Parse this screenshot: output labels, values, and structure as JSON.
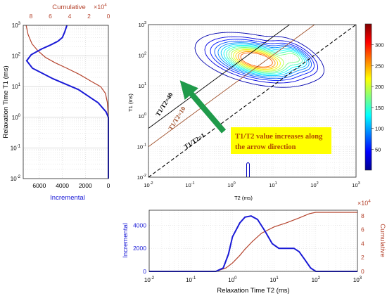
{
  "colors": {
    "incremental": "#1a1ad6",
    "cumulative": "#b5442e",
    "arrow": "#1f9a4a",
    "annotation_bg": "#ffff00",
    "annotation_text": "#b04a00",
    "ratio40": "#000000",
    "ratio10": "#a0522d",
    "ratio1": "#000000"
  },
  "chart_data": [
    {
      "id": "left",
      "type": "line",
      "ylabel": "Relaxation Time T1 (ms)",
      "xlabel": "Incremental",
      "xlabel_top": "Cumulative",
      "top_exponent": "×10",
      "top_exponent_power": "4",
      "y_scale": "log",
      "ylim": [
        0.01,
        1000
      ],
      "y_ticks": [
        "10",
        "10",
        "10",
        "10",
        "10",
        "10"
      ],
      "y_tick_powers": [
        "-2",
        "-1",
        "0",
        "1",
        "2",
        "3"
      ],
      "xlim_bottom": [
        7400,
        0
      ],
      "x_ticks_bottom": [
        "6000",
        "4000",
        "2000",
        "0"
      ],
      "x_tick_values_bottom": [
        6000,
        4000,
        2000,
        0
      ],
      "xlim_top": [
        8.8,
        0
      ],
      "x_ticks_top": [
        "8",
        "6",
        "4",
        "2",
        "0"
      ],
      "x_tick_values_top": [
        8,
        6,
        4,
        2,
        0
      ],
      "grid": true,
      "series": [
        {
          "name": "Incremental",
          "points": [
            [
              0,
              0.01
            ],
            [
              0,
              1
            ],
            [
              200,
              1.5
            ],
            [
              900,
              3
            ],
            [
              2600,
              8
            ],
            [
              4800,
              18
            ],
            [
              6600,
              40
            ],
            [
              7100,
              70
            ],
            [
              6700,
              110
            ],
            [
              5800,
              170
            ],
            [
              5000,
              230
            ],
            [
              4400,
              300
            ],
            [
              4000,
              400
            ],
            [
              3800,
              600
            ],
            [
              3600,
              1000
            ]
          ]
        },
        {
          "name": "Cumulative",
          "points": [
            [
              0,
              0.01
            ],
            [
              0,
              1
            ],
            [
              0.1,
              3
            ],
            [
              0.3,
              6
            ],
            [
              0.8,
              10
            ],
            [
              1.8,
              15
            ],
            [
              3.0,
              25
            ],
            [
              4.3,
              40
            ],
            [
              5.5,
              60
            ],
            [
              6.5,
              90
            ],
            [
              7.3,
              150
            ],
            [
              7.9,
              250
            ],
            [
              8.3,
              500
            ],
            [
              8.5,
              1000
            ]
          ]
        }
      ]
    },
    {
      "id": "map",
      "type": "heatmap",
      "xlabel": "T2 (ms)",
      "ylabel": "T1 (ms)",
      "x_scale": "log",
      "y_scale": "log",
      "xlim": [
        0.01,
        1000
      ],
      "ylim": [
        0.01,
        1000
      ],
      "x_ticks": [
        "10",
        "10",
        "10",
        "10",
        "10",
        "10"
      ],
      "x_tick_powers": [
        "-2",
        "-1",
        "0",
        "1",
        "2",
        "3"
      ],
      "y_ticks": [
        "10",
        "10",
        "10",
        "10",
        "10",
        "10"
      ],
      "y_tick_powers": [
        "-2",
        "-1",
        "0",
        "1",
        "2",
        "3"
      ],
      "colorbar_ticks": [
        "50",
        "100",
        "150",
        "200",
        "250",
        "300"
      ],
      "colorbar_tick_values": [
        50,
        100,
        150,
        200,
        250,
        300
      ],
      "colorbar_range": [
        0,
        350
      ],
      "peaks": [
        {
          "t2": 4,
          "t1": 70,
          "amplitude": 340
        },
        {
          "t2": 35,
          "t1": 90,
          "amplitude": 250
        }
      ],
      "small_feature": {
        "t2": 2.5,
        "t1_min": 0.01,
        "t1_max": 0.03
      },
      "reference_lines": [
        {
          "label": "T1/T2=40",
          "ratio": 40
        },
        {
          "label": "T1/T2=10",
          "ratio": 10
        },
        {
          "label": "T1/T2=1",
          "ratio": 1
        }
      ],
      "annotation": "T1/T2 value increases along the arrow direction",
      "annotation_lines": [
        "T1/T2 value increases along",
        "the arrow direction"
      ]
    },
    {
      "id": "bottom",
      "type": "line",
      "xlabel": "Relaxation Time T2 (ms)",
      "ylabel_left": "Incremental",
      "ylabel_right": "Cumulative",
      "right_exponent": "×10",
      "right_exponent_power": "4",
      "x_scale": "log",
      "xlim": [
        0.01,
        1000
      ],
      "x_ticks": [
        "10",
        "10",
        "10",
        "10",
        "10",
        "10"
      ],
      "x_tick_powers": [
        "-2",
        "-1",
        "0",
        "1",
        "2",
        "3"
      ],
      "ylim_left": [
        0,
        5300
      ],
      "y_ticks_left": [
        "0",
        "2000",
        "4000"
      ],
      "y_tick_values_left": [
        0,
        2000,
        4000
      ],
      "ylim_right": [
        0,
        8.8
      ],
      "y_ticks_right": [
        "0",
        "2",
        "4",
        "6",
        "8"
      ],
      "y_tick_values_right": [
        0,
        2,
        4,
        6,
        8
      ],
      "grid": true,
      "series": [
        {
          "name": "Incremental",
          "points": [
            [
              0.01,
              0
            ],
            [
              0.4,
              0
            ],
            [
              0.6,
              300
            ],
            [
              0.8,
              1500
            ],
            [
              1.0,
              3000
            ],
            [
              1.5,
              4200
            ],
            [
              2.0,
              4700
            ],
            [
              2.8,
              4800
            ],
            [
              4,
              4500
            ],
            [
              6,
              3500
            ],
            [
              9,
              2400
            ],
            [
              13,
              2000
            ],
            [
              20,
              2000
            ],
            [
              30,
              2000
            ],
            [
              40,
              1700
            ],
            [
              55,
              1000
            ],
            [
              75,
              300
            ],
            [
              100,
              0
            ],
            [
              1000,
              0
            ]
          ]
        },
        {
          "name": "Cumulative",
          "points": [
            [
              0.01,
              0
            ],
            [
              0.4,
              0
            ],
            [
              0.7,
              0.5
            ],
            [
              1.0,
              1.2
            ],
            [
              1.5,
              2.3
            ],
            [
              2.0,
              3.2
            ],
            [
              3.0,
              4.3
            ],
            [
              5.0,
              5.5
            ],
            [
              10,
              6.4
            ],
            [
              20,
              7.0
            ],
            [
              40,
              7.7
            ],
            [
              70,
              8.3
            ],
            [
              100,
              8.5
            ],
            [
              1000,
              8.5
            ]
          ]
        }
      ]
    }
  ]
}
